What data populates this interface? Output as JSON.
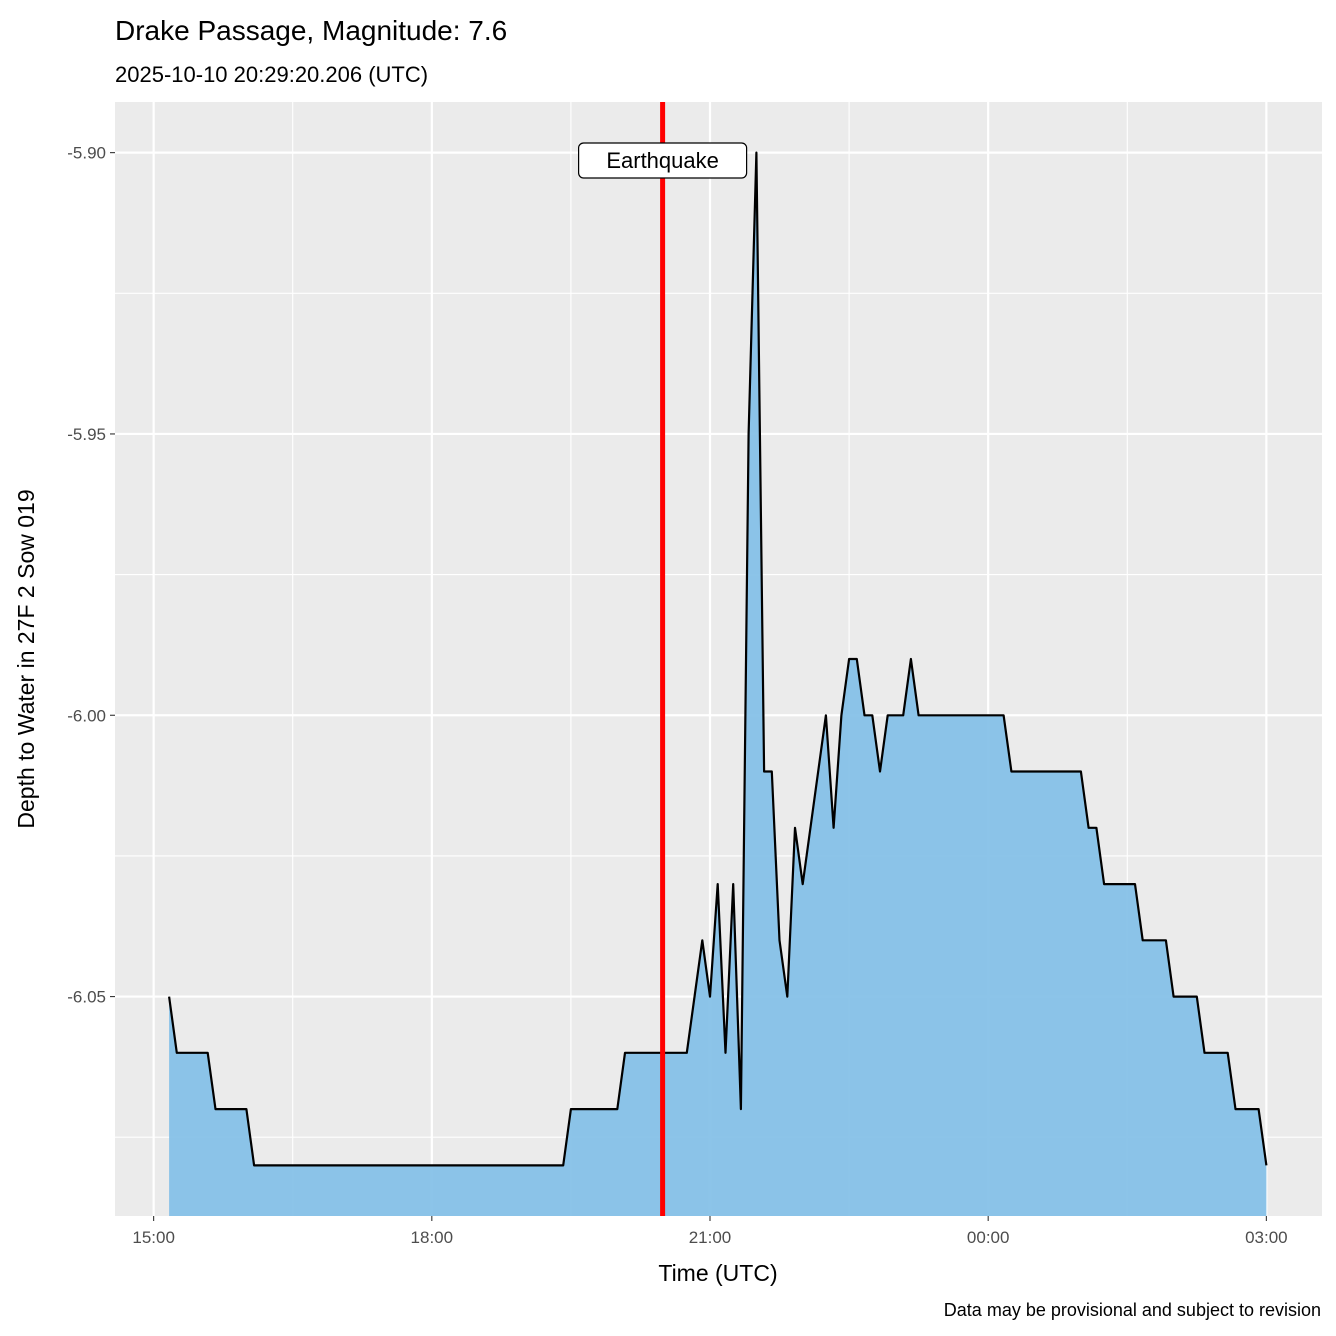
{
  "chart_data": {
    "type": "area",
    "title": "Drake Passage, Magnitude: 7.6",
    "subtitle": "2025-10-10 20:29:20.206 (UTC)",
    "xlabel": "Time (UTC)",
    "ylabel": "Depth to Water in 27F 2 Sow 019",
    "caption": "Data may be provisional and subject to revision",
    "xlim": [
      "2025-10-10 14:35",
      "2025-10-11 03:36"
    ],
    "ylim": [
      -6.089,
      -5.891
    ],
    "x_ticks": [
      {
        "t": "2025-10-10 15:00",
        "label": "15:00"
      },
      {
        "t": "2025-10-10 18:00",
        "label": "18:00"
      },
      {
        "t": "2025-10-10 21:00",
        "label": "21:00"
      },
      {
        "t": "2025-10-11 00:00",
        "label": "00:00"
      },
      {
        "t": "2025-10-11 03:00",
        "label": "03:00"
      }
    ],
    "y_ticks": [
      {
        "v": -5.9,
        "label": "-5.90"
      },
      {
        "v": -5.95,
        "label": "-5.95"
      },
      {
        "v": -6.0,
        "label": "-6.00"
      },
      {
        "v": -6.05,
        "label": "-6.05"
      }
    ],
    "grid": true,
    "colors": {
      "fill": "#86C1E8",
      "line": "#000000",
      "event": "#FF0000",
      "panel": "#EBEBEB"
    },
    "event": {
      "t": "2025-10-10 20:29:20",
      "label": "Earthquake"
    },
    "series": [
      {
        "points": [
          [
            "2025-10-10 15:10",
            -6.05
          ],
          [
            "2025-10-10 15:15",
            -6.06
          ],
          [
            "2025-10-10 15:35",
            -6.06
          ],
          [
            "2025-10-10 15:40",
            -6.07
          ],
          [
            "2025-10-10 16:00",
            -6.07
          ],
          [
            "2025-10-10 16:05",
            -6.08
          ],
          [
            "2025-10-10 19:25",
            -6.08
          ],
          [
            "2025-10-10 19:30",
            -6.07
          ],
          [
            "2025-10-10 20:00",
            -6.07
          ],
          [
            "2025-10-10 20:05",
            -6.06
          ],
          [
            "2025-10-10 20:45",
            -6.06
          ],
          [
            "2025-10-10 20:55",
            -6.04
          ],
          [
            "2025-10-10 21:00",
            -6.05
          ],
          [
            "2025-10-10 21:05",
            -6.03
          ],
          [
            "2025-10-10 21:10",
            -6.06
          ],
          [
            "2025-10-10 21:15",
            -6.03
          ],
          [
            "2025-10-10 21:20",
            -6.07
          ],
          [
            "2025-10-10 21:25",
            -5.95
          ],
          [
            "2025-10-10 21:30",
            -5.9
          ],
          [
            "2025-10-10 21:35",
            -6.01
          ],
          [
            "2025-10-10 21:40",
            -6.01
          ],
          [
            "2025-10-10 21:45",
            -6.04
          ],
          [
            "2025-10-10 21:50",
            -6.05
          ],
          [
            "2025-10-10 21:55",
            -6.02
          ],
          [
            "2025-10-10 22:00",
            -6.03
          ],
          [
            "2025-10-10 22:15",
            -6.0
          ],
          [
            "2025-10-10 22:20",
            -6.02
          ],
          [
            "2025-10-10 22:25",
            -6.0
          ],
          [
            "2025-10-10 22:30",
            -5.99
          ],
          [
            "2025-10-10 22:35",
            -5.99
          ],
          [
            "2025-10-10 22:40",
            -6.0
          ],
          [
            "2025-10-10 22:45",
            -6.0
          ],
          [
            "2025-10-10 22:50",
            -6.01
          ],
          [
            "2025-10-10 22:55",
            -6.0
          ],
          [
            "2025-10-10 23:05",
            -6.0
          ],
          [
            "2025-10-10 23:10",
            -5.99
          ],
          [
            "2025-10-10 23:15",
            -6.0
          ],
          [
            "2025-10-11 00:10",
            -6.0
          ],
          [
            "2025-10-11 00:15",
            -6.01
          ],
          [
            "2025-10-11 01:00",
            -6.01
          ],
          [
            "2025-10-11 01:05",
            -6.02
          ],
          [
            "2025-10-11 01:10",
            -6.02
          ],
          [
            "2025-10-11 01:15",
            -6.03
          ],
          [
            "2025-10-11 01:35",
            -6.03
          ],
          [
            "2025-10-11 01:40",
            -6.04
          ],
          [
            "2025-10-11 01:55",
            -6.04
          ],
          [
            "2025-10-11 02:00",
            -6.05
          ],
          [
            "2025-10-11 02:15",
            -6.05
          ],
          [
            "2025-10-11 02:20",
            -6.06
          ],
          [
            "2025-10-11 02:35",
            -6.06
          ],
          [
            "2025-10-11 02:40",
            -6.07
          ],
          [
            "2025-10-11 02:55",
            -6.07
          ],
          [
            "2025-10-11 03:00",
            -6.08
          ]
        ]
      }
    ]
  }
}
